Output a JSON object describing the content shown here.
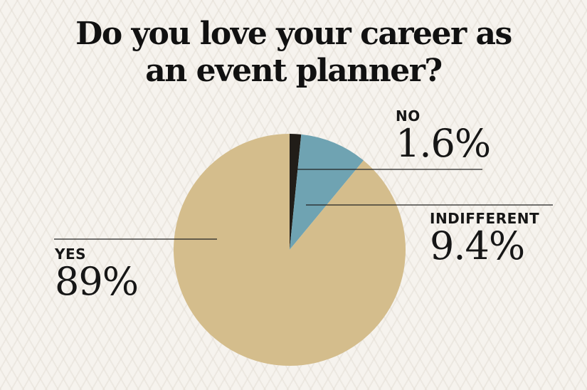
{
  "title": {
    "line1": "Do you love your career as",
    "line2": "an event planner?"
  },
  "colors": {
    "background": "#f6f3ee",
    "yes": "#d4bd8c",
    "indifferent": "#6fa3b2",
    "no": "#211d18",
    "leader_line": "#222222"
  },
  "chart_data": {
    "type": "pie",
    "title": "Do you love your career as an event planner?",
    "start_angle_deg": 0,
    "direction": "clockwise",
    "slices": [
      {
        "label": "NO",
        "value": 1.6,
        "display": "1.6%",
        "color": "#211d18"
      },
      {
        "label": "INDIFFERENT",
        "value": 9.4,
        "display": "9.4%",
        "color": "#6fa3b2"
      },
      {
        "label": "YES",
        "value": 89,
        "display": "89%",
        "color": "#d4bd8c"
      }
    ]
  }
}
